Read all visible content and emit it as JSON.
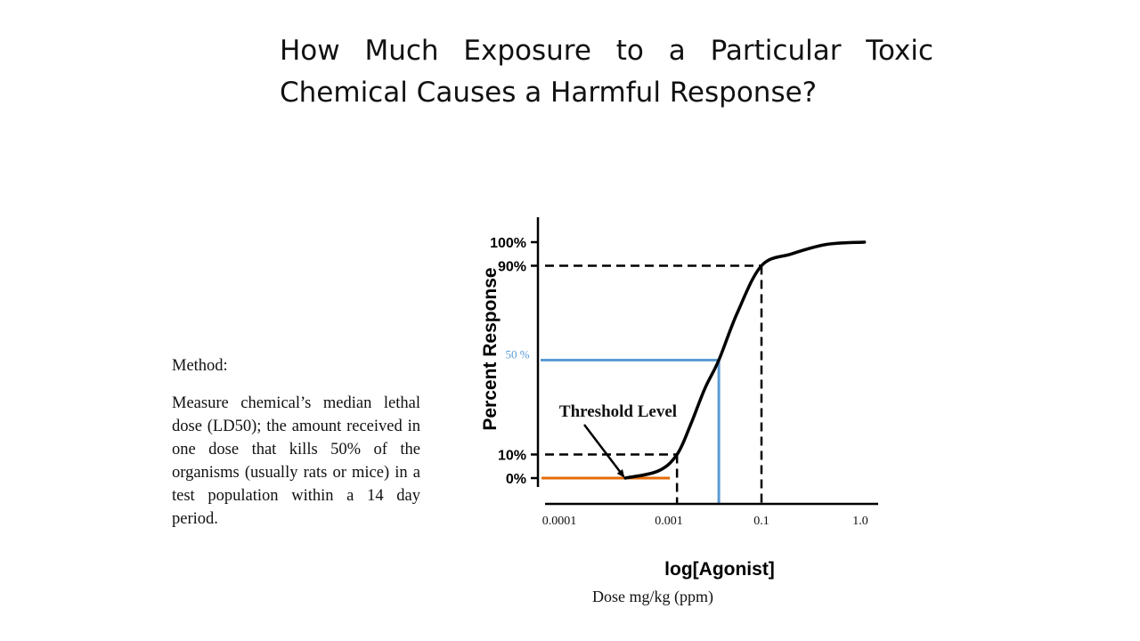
{
  "slide": {
    "title": "How Much Exposure to a Particular Toxic Chemical Causes a Harmful Response?"
  },
  "method": {
    "heading": "Method:",
    "text": "Measure chemical’s median lethal dose (LD50); the amount received in one dose that kills 50% of the organisms (usually rats or mice) in a test population within a 14 day period."
  },
  "chart_data": {
    "type": "line",
    "title": "",
    "ylabel": "Percent Response",
    "xlabel": "log[Agonist]",
    "xlabel_caption": "Dose mg/kg (ppm)",
    "x_scale": "log",
    "x_ticks": [
      "0.0001",
      "0.001",
      "0.1",
      "1.0"
    ],
    "y_ticks": [
      "100%",
      "90%",
      "10%",
      "0%"
    ],
    "ylim": [
      0,
      100
    ],
    "grid": false,
    "series": [
      {
        "color": "#000000",
        "points": [
          {
            "x": 0.0004,
            "y": 0
          },
          {
            "x": 0.0008,
            "y": 3
          },
          {
            "x": 0.0015,
            "y": 10
          },
          {
            "x": 0.003,
            "y": 23
          },
          {
            "x": 0.006,
            "y": 38
          },
          {
            "x": 0.012,
            "y": 50
          },
          {
            "x": 0.03,
            "y": 70
          },
          {
            "x": 0.1,
            "y": 90
          },
          {
            "x": 0.2,
            "y": 95
          },
          {
            "x": 0.45,
            "y": 99
          },
          {
            "x": 1.1,
            "y": 100
          }
        ]
      }
    ],
    "reference_lines": [
      {
        "label": "90%",
        "y": 90,
        "x": 0.1,
        "style": "dashed",
        "color": "#000000"
      },
      {
        "label": "10%",
        "y": 10,
        "x": 0.0015,
        "style": "dashed",
        "color": "#000000"
      },
      {
        "label": "50 %",
        "y": 50,
        "x": 0.012,
        "style": "solid",
        "color": "#5b9bd5"
      },
      {
        "y": 0,
        "x_start": 0.0001,
        "x_end": 0.0015,
        "style": "solid",
        "color": "#e46c0a"
      }
    ],
    "annotations": [
      {
        "text": "Threshold Level",
        "points_to": {
          "x": 0.0004,
          "y": 0
        }
      }
    ]
  }
}
